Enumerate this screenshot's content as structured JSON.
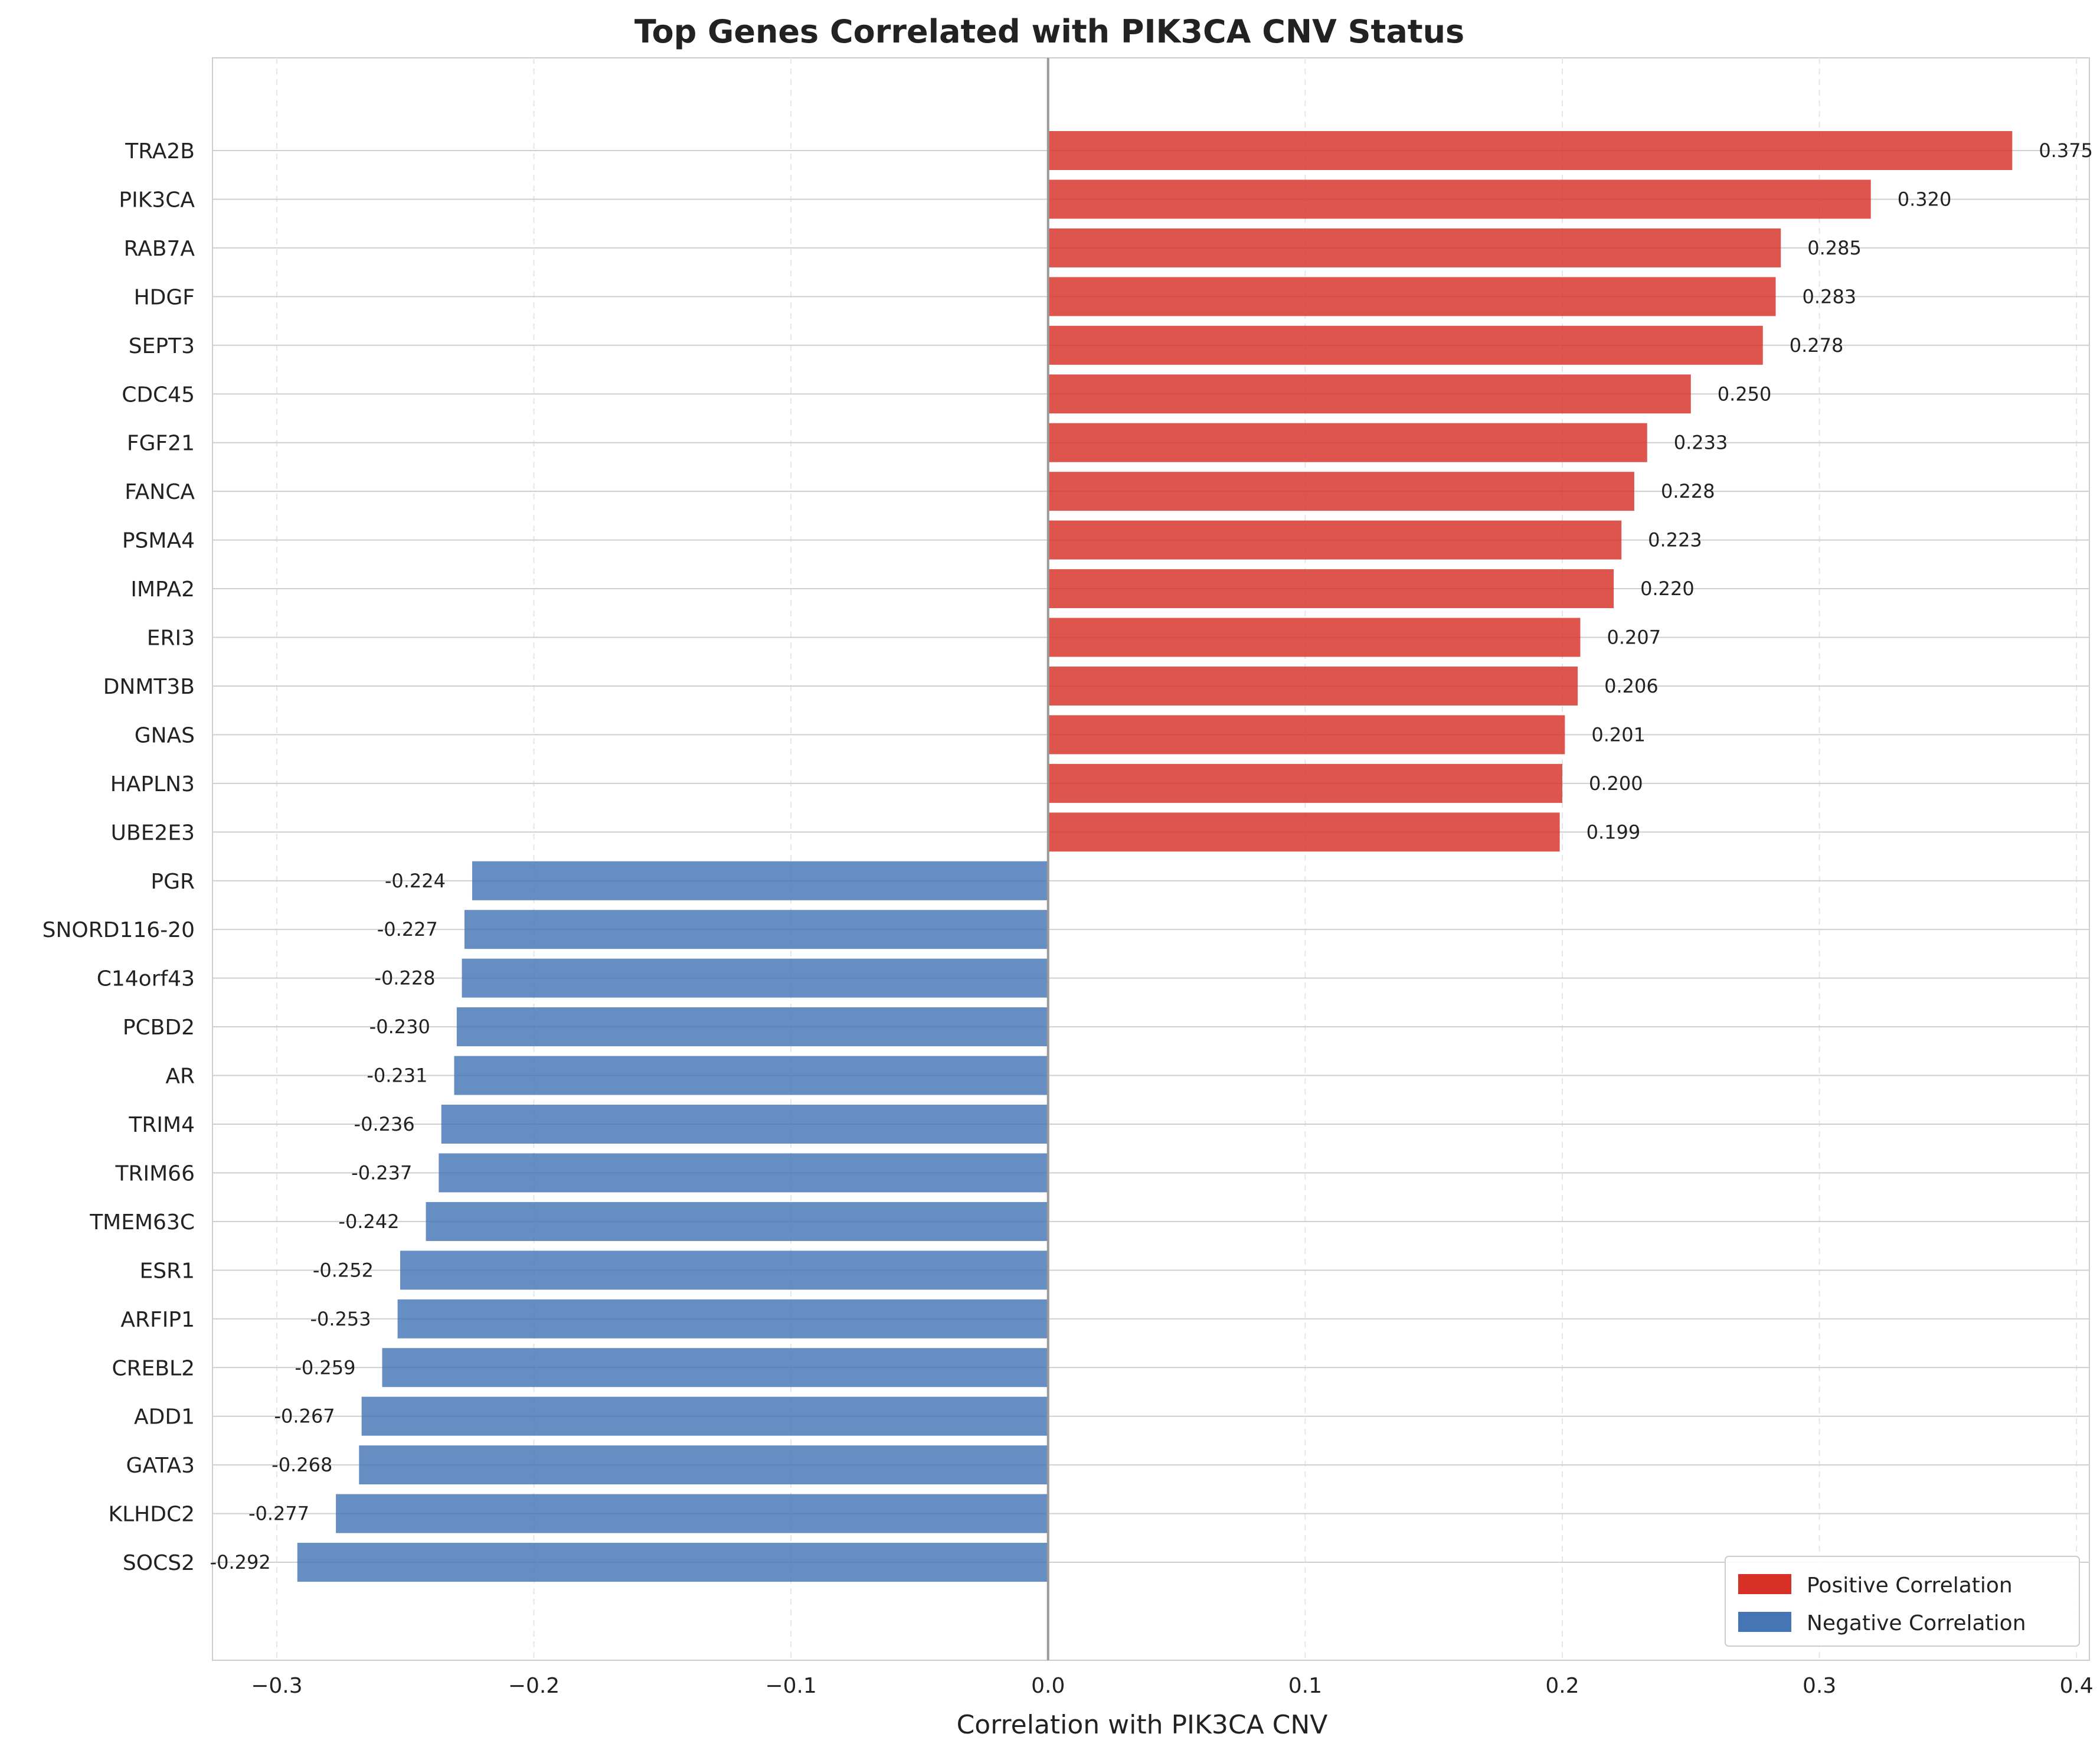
{
  "chart_data": {
    "type": "bar",
    "orientation": "horizontal",
    "title": "Top Genes Correlated with PIK3CA CNV Status",
    "xlabel": "Correlation with PIK3CA CNV",
    "ylabel": "",
    "xlim": [
      -0.325,
      0.405
    ],
    "xticks": [
      -0.3,
      -0.2,
      -0.1,
      0.0,
      0.1,
      0.2,
      0.3,
      0.4
    ],
    "xtick_labels": [
      "−0.3",
      "−0.2",
      "−0.1",
      "0.0",
      "0.1",
      "0.2",
      "0.3",
      "0.4"
    ],
    "grid": true,
    "legend_position": "bottom-right",
    "colors": {
      "positive": "#d73027",
      "negative": "#4575b4"
    },
    "legend": [
      {
        "label": "Positive Correlation",
        "color": "#d73027"
      },
      {
        "label": "Negative Correlation",
        "color": "#4575b4"
      }
    ],
    "categories": [
      "TRA2B",
      "PIK3CA",
      "RAB7A",
      "HDGF",
      "SEPT3",
      "CDC45",
      "FGF21",
      "FANCA",
      "PSMA4",
      "IMPA2",
      "ERI3",
      "DNMT3B",
      "GNAS",
      "HAPLN3",
      "UBE2E3",
      "PGR",
      "SNORD116-20",
      "C14orf43",
      "PCBD2",
      "AR",
      "TRIM4",
      "TRIM66",
      "TMEM63C",
      "ESR1",
      "ARFIP1",
      "CREBL2",
      "ADD1",
      "GATA3",
      "KLHDC2",
      "SOCS2"
    ],
    "values": [
      0.375,
      0.32,
      0.285,
      0.283,
      0.278,
      0.25,
      0.233,
      0.228,
      0.223,
      0.22,
      0.207,
      0.206,
      0.201,
      0.2,
      0.199,
      -0.224,
      -0.227,
      -0.228,
      -0.23,
      -0.231,
      -0.236,
      -0.237,
      -0.242,
      -0.252,
      -0.253,
      -0.259,
      -0.267,
      -0.268,
      -0.277,
      -0.292
    ],
    "value_labels": [
      "0.375",
      "0.320",
      "0.285",
      "0.283",
      "0.278",
      "0.250",
      "0.233",
      "0.228",
      "0.223",
      "0.220",
      "0.207",
      "0.206",
      "0.201",
      "0.200",
      "0.199",
      "-0.224",
      "-0.227",
      "-0.228",
      "-0.230",
      "-0.231",
      "-0.236",
      "-0.237",
      "-0.242",
      "-0.252",
      "-0.253",
      "-0.259",
      "-0.267",
      "-0.268",
      "-0.277",
      "-0.292"
    ]
  }
}
